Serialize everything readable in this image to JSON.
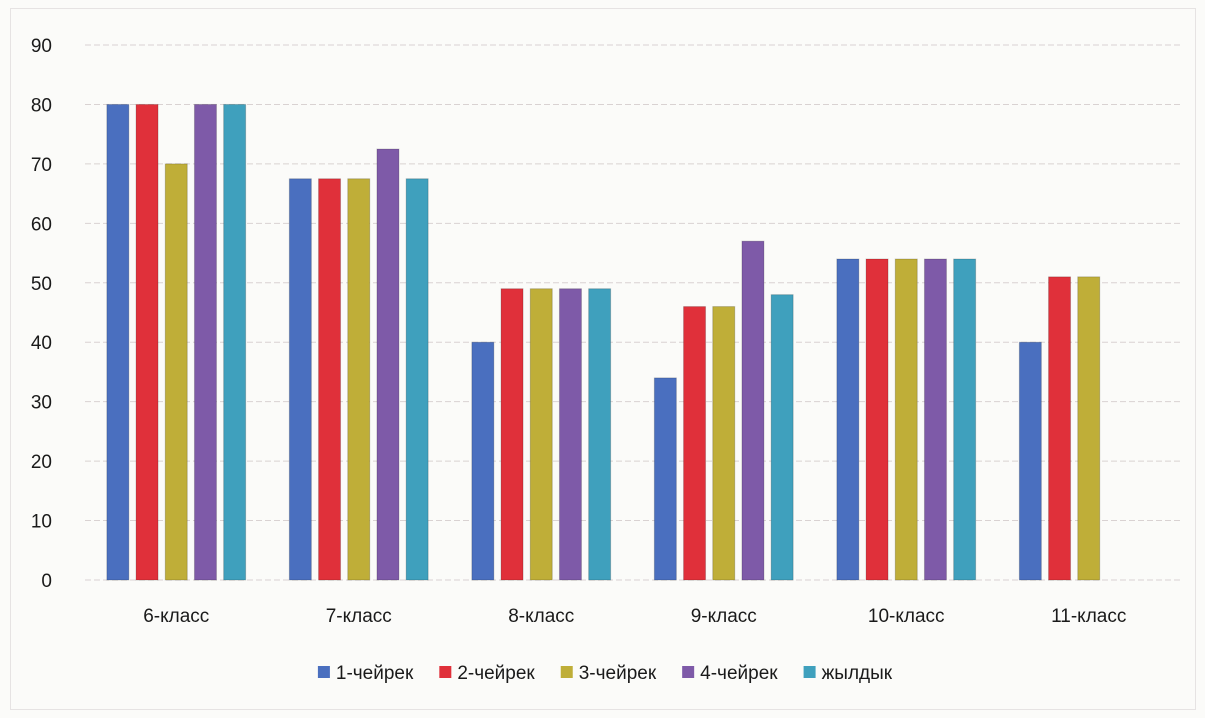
{
  "chart_data": {
    "type": "bar",
    "categories": [
      "6-класс",
      "7-класс",
      "8-класс",
      "9-класс",
      "10-класс",
      "11-класс"
    ],
    "series": [
      {
        "name": "1-чейрек",
        "color": "#4a6fbf",
        "values": [
          80,
          67.5,
          40,
          34,
          54,
          40
        ]
      },
      {
        "name": "2-чейрек",
        "color": "#e0303a",
        "values": [
          80,
          67.5,
          49,
          46,
          54,
          51
        ]
      },
      {
        "name": "3-чейрек",
        "color": "#bfae38",
        "values": [
          70,
          67.5,
          49,
          46,
          54,
          51
        ]
      },
      {
        "name": "4-чейрек",
        "color": "#7e5aa8",
        "values": [
          80,
          72.5,
          49,
          57,
          54,
          null
        ]
      },
      {
        "name": "жылдык",
        "color": "#3fa0bd",
        "values": [
          80,
          67.5,
          49,
          48,
          54,
          null
        ]
      }
    ],
    "ylim": [
      0,
      90
    ],
    "yticks": [
      0,
      10,
      20,
      30,
      40,
      50,
      60,
      70,
      80,
      90
    ],
    "grid": true,
    "legend_position": "bottom"
  }
}
